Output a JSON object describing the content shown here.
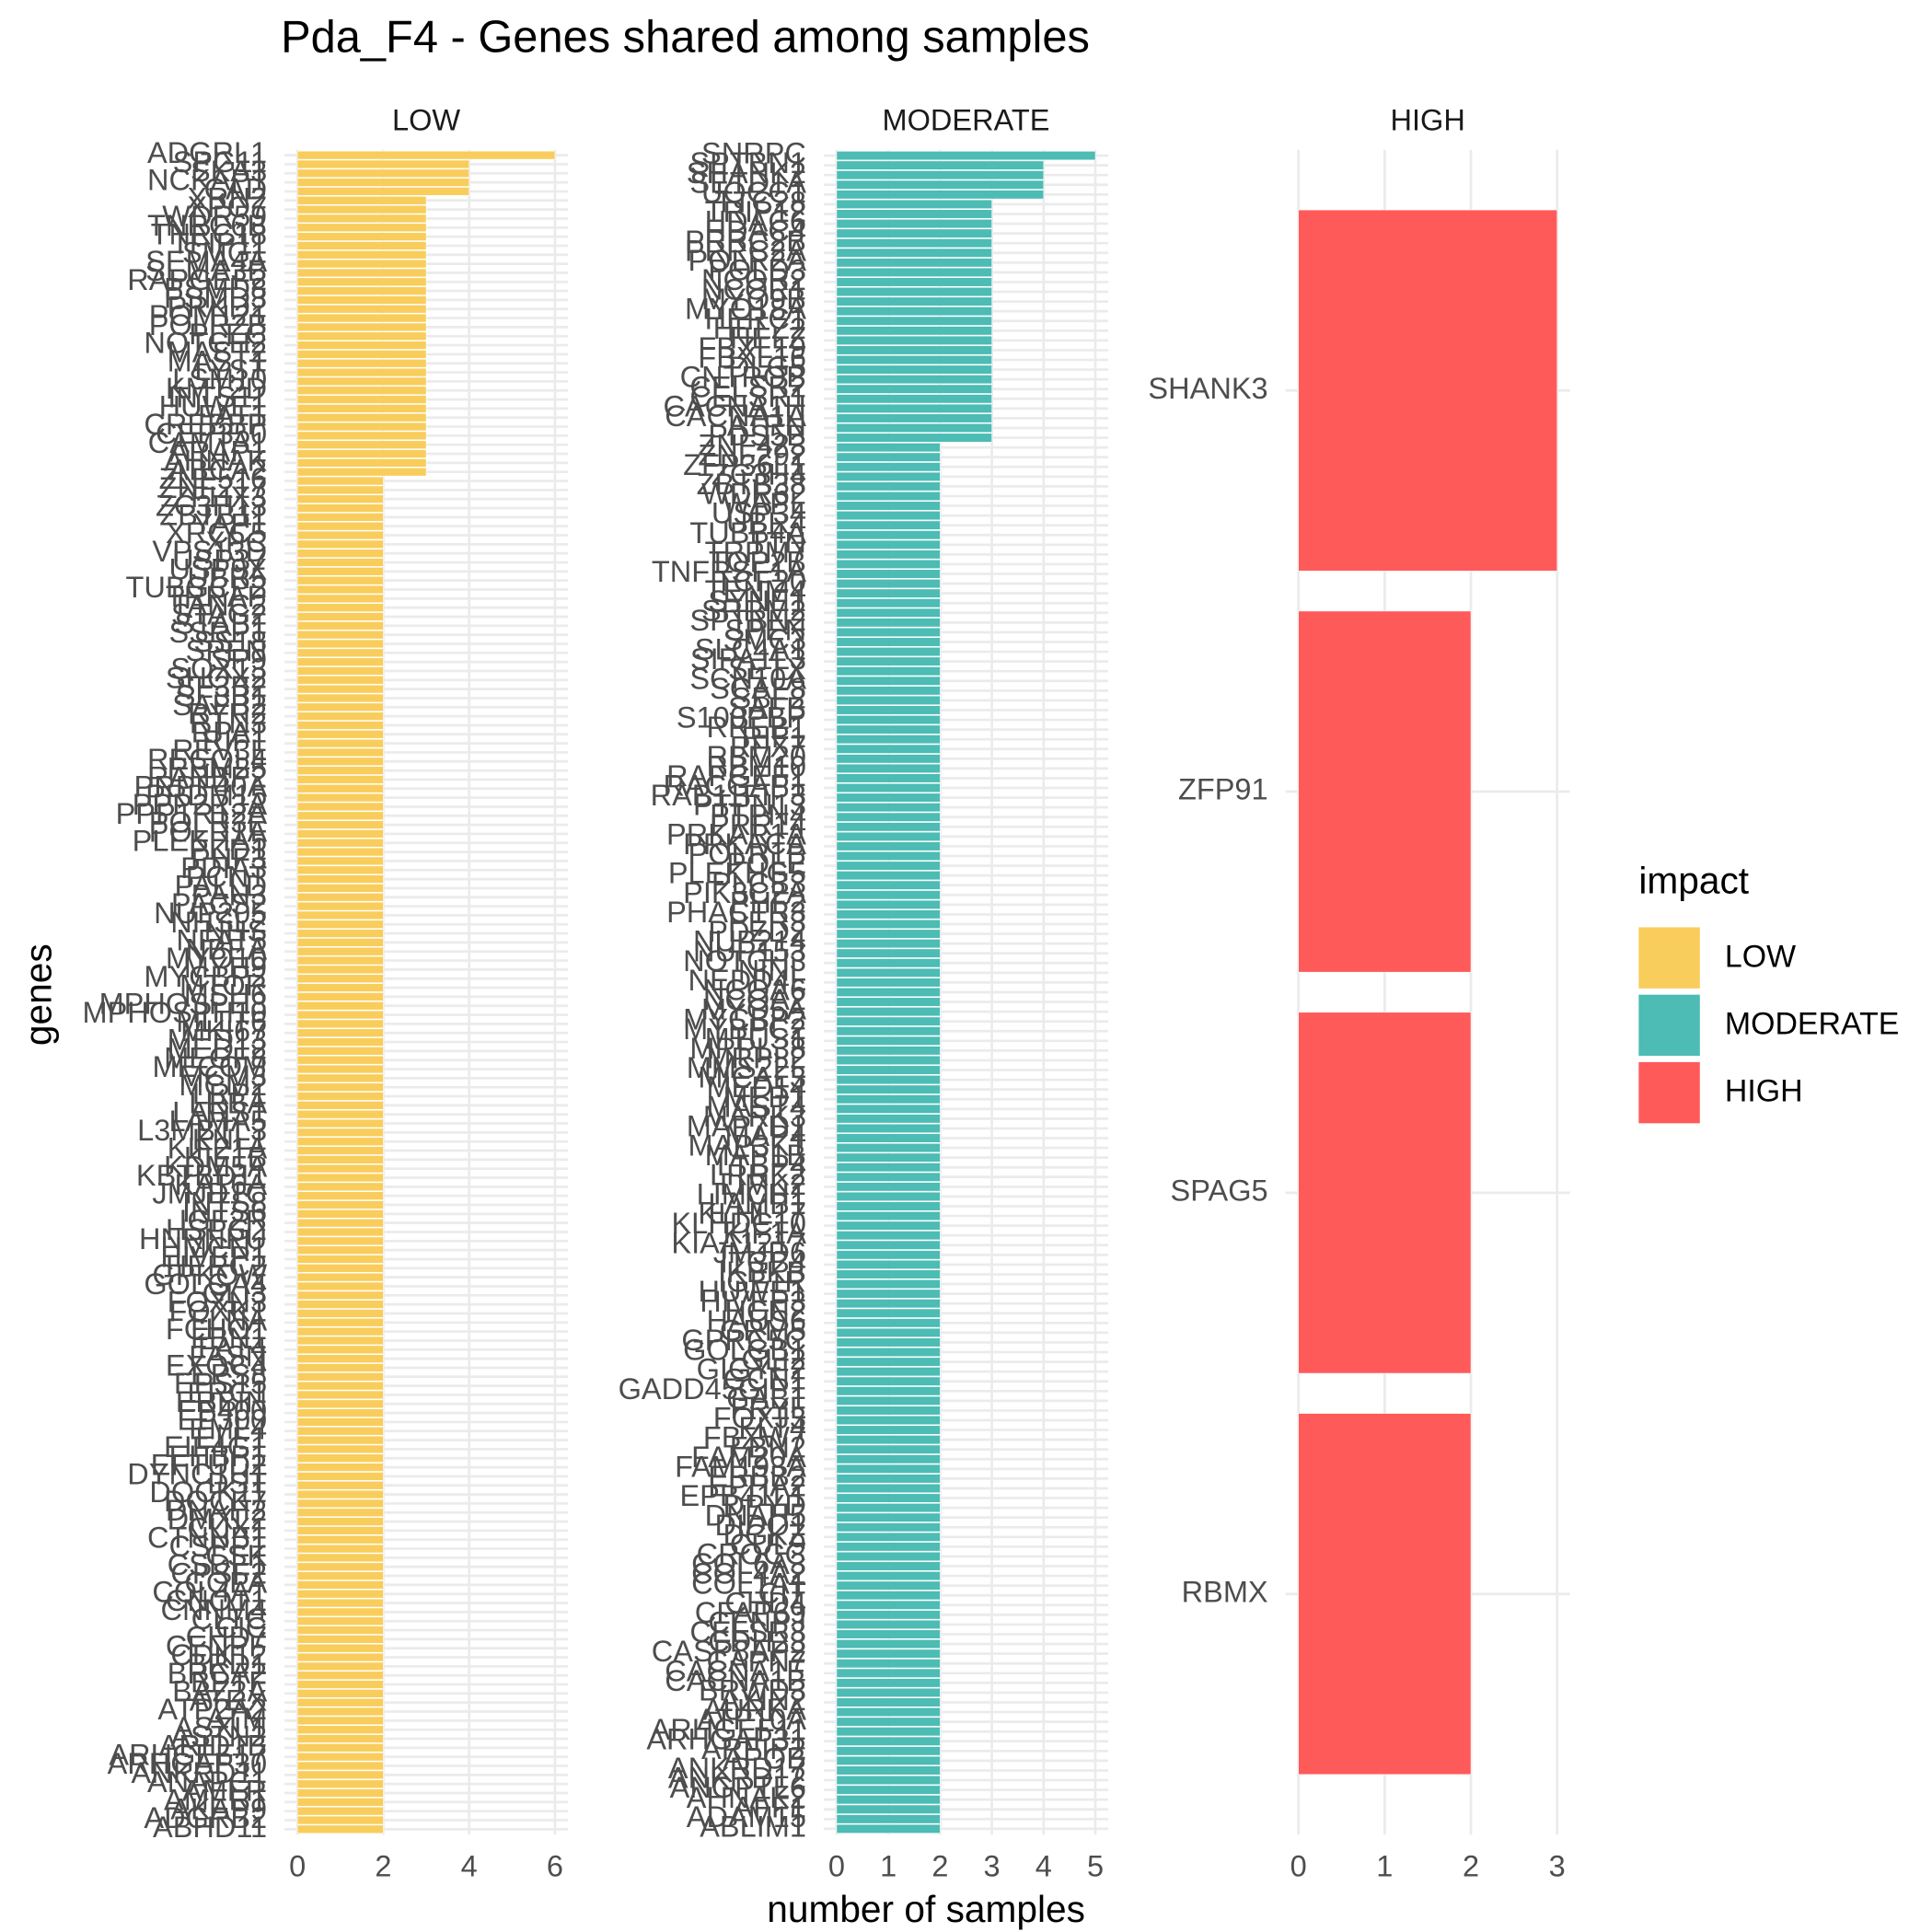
{
  "title": "Pda_F4 - Genes shared among samples",
  "x_label": "number of samples",
  "y_label": "genes",
  "legend": {
    "title": "impact",
    "position": "right"
  },
  "chart_data": [
    {
      "type": "bar",
      "orientation": "horizontal",
      "grid": true,
      "xlim": [
        -0.3,
        6.3
      ],
      "xticks": [
        0,
        2,
        4,
        6
      ],
      "categories": [
        "ADGRL1",
        "SPG11",
        "SKA3",
        "NCKAP1",
        "CAD",
        "XRN2",
        "XPO7",
        "WDR59",
        "TNRC6B",
        "TNRC18",
        "TFIP11",
        "SMG1",
        "SEMA4A",
        "SEMA3B",
        "RAPGEF2",
        "PSMD8",
        "PSMD3",
        "PRKD2",
        "POM121",
        "POLR2B",
        "PLEC",
        "NOTCH2",
        "MAST2",
        "MAST1",
        "LYST",
        "LSM10",
        "KMT2D",
        "INTS11",
        "HUWE1",
        "FAT1",
        "CREBBP",
        "CEP350",
        "CAMTA1",
        "ARAP1",
        "AHNAK",
        "ABCA2",
        "ZNF516",
        "ZNF217",
        "ZFHX3",
        "ZC3H13",
        "ZBTB11",
        "YAP1",
        "XRCC5",
        "XPC",
        "VPS13D",
        "USP37",
        "USP9X",
        "UBR5",
        "TUBGCP2",
        "TRRAP",
        "TANC2",
        "STAG2",
        "STAB1",
        "SSRP1",
        "SS18",
        "SPEN",
        "SP9",
        "SOX13",
        "SHOX2",
        "SF3B2",
        "SF3B1",
        "SAFB2",
        "RYR2",
        "RTN3",
        "RPA1",
        "RIF1",
        "REV3L",
        "RECQL4",
        "RBM25",
        "RANBP2",
        "PRPF40A",
        "PRDM15",
        "PPP2R3A",
        "PPP1R12A",
        "POLR3E",
        "POLR1A",
        "PLEKHA5",
        "PKD1",
        "PHF3",
        "PDIA3",
        "PCNT",
        "PALLD",
        "PAN3",
        "PACS2",
        "NUP205",
        "NHSL2",
        "NHS",
        "NFAT5",
        "NBEA",
        "MYO10",
        "MYH9",
        "MYCBP2",
        "MTOR",
        "MSH6",
        "MPHOSPH8",
        "MPHOSPH10",
        "MLLT6",
        "MKI67",
        "MED13",
        "MED12",
        "MEGF8",
        "MECOM",
        "MCM3",
        "MCM2",
        "LRP1",
        "LRBA",
        "LARS1",
        "LAMA5",
        "L3MBTL3",
        "KNL1",
        "KIF21A",
        "KIF1B",
        "KDM5A",
        "KBTBD11",
        "KAT6A",
        "JMJD1C",
        "INTS8",
        "INTS6",
        "IGF2R",
        "HSPG2",
        "HNRNPU",
        "HMCN1",
        "HIVEP1",
        "HERC2",
        "GPKOW",
        "GOLGA4",
        "GLI3",
        "FOXN3",
        "FOXK1",
        "FLNA",
        "FCHO1",
        "FBN1",
        "FAT4",
        "FASN",
        "EXOC4",
        "EPS8",
        "EPS15",
        "ERC1",
        "ERBIN",
        "EP400",
        "EP300",
        "EML4",
        "ELF1",
        "EIF4G1",
        "EHBP1",
        "EFTUD2",
        "DYNC1H1",
        "DST",
        "DOCK11",
        "DOCK7",
        "DNAH2",
        "DMXL2",
        "CUX1",
        "CTNNB1",
        "CSPP1",
        "CSK",
        "CSDE1",
        "CPSF2",
        "COPA",
        "COL4A1",
        "CNOT1",
        "CNNM4",
        "CLTC",
        "CIC",
        "CHD7",
        "CENPF",
        "CDK12",
        "BRD1",
        "BRCA2",
        "BPTF",
        "BAZ2A",
        "ATRX",
        "ATP2A2",
        "ATM",
        "ASXL1",
        "ASTN2",
        "ARID1B",
        "ARHGEF17",
        "ARHGAP30",
        "ANKRD11",
        "ANAPC1",
        "AMFR",
        "AMER1",
        "AKAP9",
        "ADGRB2",
        "ABHD11"
      ],
      "series": [
        {
          "name": "LOW",
          "color": "#f9cd5c",
          "values": [
            6,
            4,
            4,
            4,
            4,
            3,
            3,
            3,
            3,
            3,
            3,
            3,
            3,
            3,
            3,
            3,
            3,
            3,
            3,
            3,
            3,
            3,
            3,
            3,
            3,
            3,
            3,
            3,
            3,
            3,
            3,
            3,
            3,
            3,
            3,
            3,
            2,
            2,
            2,
            2,
            2,
            2,
            2,
            2,
            2,
            2,
            2,
            2,
            2,
            2,
            2,
            2,
            2,
            2,
            2,
            2,
            2,
            2,
            2,
            2,
            2,
            2,
            2,
            2,
            2,
            2,
            2,
            2,
            2,
            2,
            2,
            2,
            2,
            2,
            2,
            2,
            2,
            2,
            2,
            2,
            2,
            2,
            2,
            2,
            2,
            2,
            2,
            2,
            2,
            2,
            2,
            2,
            2,
            2,
            2,
            2,
            2,
            2,
            2,
            2,
            2,
            2,
            2,
            2,
            2,
            2,
            2,
            2,
            2,
            2,
            2,
            2,
            2,
            2,
            2,
            2,
            2,
            2,
            2,
            2,
            2,
            2,
            2,
            2,
            2,
            2,
            2,
            2,
            2,
            2,
            2,
            2,
            2,
            2,
            2,
            2,
            2,
            2,
            2,
            2,
            2,
            2,
            2,
            2,
            2,
            2,
            2,
            2,
            2,
            2,
            2,
            2,
            2,
            2,
            2,
            2,
            2,
            2,
            2,
            2,
            2,
            2,
            2,
            2,
            2,
            2,
            2,
            2,
            2,
            2,
            2,
            2,
            2,
            2,
            2,
            2,
            2,
            2,
            2,
            2,
            2,
            2,
            2,
            2,
            2,
            2
          ]
        }
      ]
    },
    {
      "type": "bar",
      "orientation": "horizontal",
      "grid": true,
      "xlim": [
        -0.25,
        5.25
      ],
      "xticks": [
        0,
        1,
        2,
        3,
        4,
        5
      ],
      "categories": [
        "SNRPC",
        "SPTBN1",
        "SHANK2",
        "SETD1A",
        "UQCC1",
        "TTC28",
        "TRIP12",
        "HDAC6",
        "HDAC4",
        "PRRC2B",
        "PRRC2A",
        "POLR2A",
        "POLD3",
        "NCOR2",
        "NCOR1",
        "MYO9B",
        "MYO18A",
        "HERC1",
        "HELZ2",
        "HELZ",
        "FBXL19",
        "FBXL16",
        "DLG5",
        "CNTROB",
        "CELSR2",
        "CELSR1",
        "CACNA1H",
        "CACNA1A",
        "ATRN",
        "PDS5B",
        "ZNF423",
        "ZNF292",
        "ZFP36L1",
        "ZC3H4",
        "ZBTB38",
        "WDR62",
        "WAPL",
        "USP34",
        "UBR4",
        "TUBB4A",
        "TTN",
        "TRPM7",
        "TOP2B",
        "TNFRSF1A",
        "TCF20",
        "TENM4",
        "SYNE1",
        "SRRM2",
        "SPTBN2",
        "SPEN",
        "SMC3",
        "SLC4A1",
        "SIPA1L3",
        "SETX",
        "SCN10A",
        "SCAF8",
        "SBF2",
        "SAFB",
        "S100PBP",
        "RREB1",
        "RIF1",
        "RFX7",
        "RBM20",
        "RBM10",
        "RAPGEF1",
        "RACGAP1",
        "RAB11FIP3",
        "PTPN13",
        "PTPN4",
        "PRR14",
        "PRKAR1A",
        "PRKACA",
        "POLR1B",
        "POLE",
        "PLEKHG5",
        "PLCB3",
        "PIK3C2A",
        "PHF2",
        "PHACTR3",
        "PER3",
        "PDZD2",
        "NUP214",
        "NUP153",
        "NOTCH3",
        "NINL",
        "NEDD4L",
        "NCOA6",
        "NCOA2",
        "MYO5A",
        "MYCBP2",
        "MYBPC2",
        "MTUS1",
        "MRPL38",
        "MRPL2",
        "MMS22L",
        "MICAL3",
        "MED14",
        "MED1",
        "MAST4",
        "MARK3",
        "MAP7D1",
        "MAP4",
        "MAP3K1",
        "MAP1B",
        "LTBP4",
        "LRRK2",
        "LIMK2",
        "LIMCH1",
        "LAMB1",
        "KLHL17",
        "KLHDC10",
        "KIF1A",
        "KIAA1217",
        "JMJD6",
        "ITGB4",
        "IKBKB",
        "IGF1R",
        "HUWE1",
        "HIVEP3",
        "HCN2",
        "HAUS6",
        "GRM5",
        "GPRC5C",
        "GOLGB1",
        "GLI2",
        "GIGYF2",
        "GCN1",
        "GADD45GIP1",
        "GAB1",
        "FRYL",
        "FOXJ3",
        "FLT4",
        "FBXW7",
        "FBN2",
        "FAM20A",
        "FAM193A",
        "ERBB2",
        "EPHA2",
        "EPB41L1",
        "DPYD",
        "DNAH5",
        "DIDO1",
        "DGKZ",
        "CUL9",
        "CROCC",
        "COL6A3",
        "COL4A2",
        "COL1A1",
        "CIT",
        "CHD4",
        "CFAP69",
        "CENPJ",
        "CELSR3",
        "CDH23",
        "CASP8AP2",
        "CAPN7",
        "CACNA1E",
        "CACNA1B",
        "BRWD3",
        "AXIN2",
        "AURKA",
        "ATP10A",
        "ARHGEF11",
        "ARHGAP31",
        "ARFIP2",
        "APOB",
        "ANKRD17",
        "ANKRD12",
        "ANGPTL6",
        "AHNAK2",
        "AFF1",
        "ADAM15",
        "ABLIM1"
      ],
      "series": [
        {
          "name": "MODERATE",
          "color": "#4cbcb4",
          "values": [
            5,
            4,
            4,
            4,
            4,
            3,
            3,
            3,
            3,
            3,
            3,
            3,
            3,
            3,
            3,
            3,
            3,
            3,
            3,
            3,
            3,
            3,
            3,
            3,
            3,
            3,
            3,
            3,
            3,
            3,
            2,
            2,
            2,
            2,
            2,
            2,
            2,
            2,
            2,
            2,
            2,
            2,
            2,
            2,
            2,
            2,
            2,
            2,
            2,
            2,
            2,
            2,
            2,
            2,
            2,
            2,
            2,
            2,
            2,
            2,
            2,
            2,
            2,
            2,
            2,
            2,
            2,
            2,
            2,
            2,
            2,
            2,
            2,
            2,
            2,
            2,
            2,
            2,
            2,
            2,
            2,
            2,
            2,
            2,
            2,
            2,
            2,
            2,
            2,
            2,
            2,
            2,
            2,
            2,
            2,
            2,
            2,
            2,
            2,
            2,
            2,
            2,
            2,
            2,
            2,
            2,
            2,
            2,
            2,
            2,
            2,
            2,
            2,
            2,
            2,
            2,
            2,
            2,
            2,
            2,
            2,
            2,
            2,
            2,
            2,
            2,
            2,
            2,
            2,
            2,
            2,
            2,
            2,
            2,
            2,
            2,
            2,
            2,
            2,
            2,
            2,
            2,
            2,
            2,
            2,
            2,
            2,
            2,
            2,
            2,
            2,
            2,
            2,
            2,
            2,
            2,
            2,
            2,
            2,
            2,
            2,
            2,
            2,
            2,
            2,
            2,
            2,
            2,
            2,
            2,
            2,
            2,
            2
          ]
        }
      ]
    },
    {
      "type": "bar",
      "orientation": "horizontal",
      "grid": true,
      "xlim": [
        -0.15,
        3.15
      ],
      "xticks": [
        0,
        1,
        2,
        3
      ],
      "categories": [
        "SHANK3",
        "ZFP91",
        "SPAG5",
        "RBMX"
      ],
      "series": [
        {
          "name": "HIGH",
          "color": "#ff5a5a",
          "values": [
            3,
            2,
            2,
            2
          ]
        }
      ]
    }
  ]
}
